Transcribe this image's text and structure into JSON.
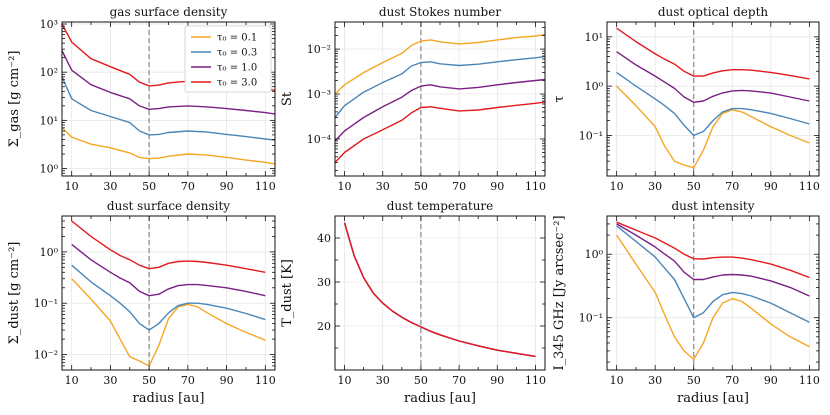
{
  "figure": {
    "xlabel": "radius [au]"
  },
  "legend": {
    "placement": "top-right",
    "panel": 0,
    "entries": [
      "τ₀ = 0.1",
      "τ₀ = 0.3",
      "τ₀ = 1.0",
      "τ₀ = 3.0"
    ]
  },
  "colors": {
    "t01": "#f5a623",
    "t03": "#4a86b8",
    "t10": "#7b1f86",
    "t30": "#e31a1c",
    "vline": "#888888"
  },
  "vline_x": 50,
  "chart_data": [
    {
      "type": "line",
      "title": "gas surface density",
      "ylabel": "Σ_gas [g cm⁻²]",
      "yscale": "log",
      "xlim": [
        5,
        115
      ],
      "ylim": [
        0.7,
        1100
      ],
      "xticks": [
        10,
        30,
        50,
        70,
        90,
        110
      ],
      "yticks": [
        1,
        10,
        100,
        1000
      ],
      "ytick_labels": [
        "10⁰",
        "10¹",
        "10²",
        "10³"
      ],
      "x": [
        5,
        10,
        20,
        30,
        40,
        45,
        50,
        55,
        60,
        70,
        80,
        90,
        100,
        110,
        115
      ],
      "series": [
        {
          "name": "τ₀ = 0.1",
          "color_key": "t01",
          "values": [
            7,
            4.5,
            3.2,
            2.7,
            2.1,
            1.7,
            1.6,
            1.65,
            1.8,
            2.0,
            1.9,
            1.7,
            1.5,
            1.35,
            1.25
          ]
        },
        {
          "name": "τ₀ = 0.3",
          "color_key": "t03",
          "values": [
            80,
            28,
            16,
            12,
            9,
            6,
            5,
            5.1,
            5.6,
            6,
            5.7,
            5.1,
            4.6,
            4.1,
            3.9
          ]
        },
        {
          "name": "τ₀ = 1.0",
          "color_key": "t10",
          "values": [
            280,
            110,
            55,
            38,
            28,
            20,
            17,
            17.5,
            19,
            20,
            19,
            17.5,
            16,
            14.5,
            13.5
          ]
        },
        {
          "name": "τ₀ = 3.0",
          "color_key": "t30",
          "values": [
            1000,
            420,
            190,
            130,
            90,
            62,
            52,
            54,
            60,
            65,
            60,
            55,
            50,
            45,
            42
          ]
        }
      ]
    },
    {
      "type": "line",
      "title": "dust Stokes number",
      "ylabel": "St",
      "yscale": "log",
      "xlim": [
        5,
        115
      ],
      "ylim": [
        1.5e-05,
        0.04
      ],
      "xticks": [
        10,
        30,
        50,
        70,
        90,
        110
      ],
      "yticks": [
        0.0001,
        0.001,
        0.01
      ],
      "ytick_labels": [
        "10⁻⁴",
        "10⁻³",
        "10⁻²"
      ],
      "x": [
        5,
        10,
        20,
        30,
        40,
        45,
        50,
        55,
        60,
        70,
        80,
        90,
        100,
        110,
        115
      ],
      "series": [
        {
          "name": "τ₀ = 0.1",
          "color_key": "t01",
          "values": [
            0.001,
            0.0016,
            0.003,
            0.005,
            0.008,
            0.012,
            0.015,
            0.016,
            0.0145,
            0.013,
            0.014,
            0.016,
            0.018,
            0.0195,
            0.021
          ]
        },
        {
          "name": "τ₀ = 0.3",
          "color_key": "t03",
          "values": [
            0.0003,
            0.00055,
            0.0011,
            0.0018,
            0.0028,
            0.0042,
            0.005,
            0.0052,
            0.0047,
            0.0043,
            0.0046,
            0.0052,
            0.0058,
            0.0064,
            0.0068
          ]
        },
        {
          "name": "τ₀ = 1.0",
          "color_key": "t10",
          "values": [
            9e-05,
            0.00015,
            0.0003,
            0.00052,
            0.00085,
            0.0012,
            0.0015,
            0.0016,
            0.00145,
            0.0013,
            0.0014,
            0.0016,
            0.0018,
            0.002,
            0.0021
          ]
        },
        {
          "name": "τ₀ = 3.0",
          "color_key": "t30",
          "values": [
            3e-05,
            5e-05,
            0.0001,
            0.00016,
            0.00026,
            0.00038,
            0.0005,
            0.00052,
            0.00048,
            0.00042,
            0.00044,
            0.0005,
            0.00056,
            0.00062,
            0.00066
          ]
        }
      ]
    },
    {
      "type": "line",
      "title": "dust optical depth",
      "ylabel": "τ",
      "yscale": "log",
      "xlim": [
        5,
        115
      ],
      "ylim": [
        0.015,
        20
      ],
      "xticks": [
        10,
        30,
        50,
        70,
        90,
        110
      ],
      "yticks": [
        0.1,
        1,
        10
      ],
      "ytick_labels": [
        "10⁻¹",
        "10⁰",
        "10¹"
      ],
      "x": [
        10,
        20,
        30,
        35,
        40,
        45,
        50,
        55,
        60,
        65,
        70,
        75,
        80,
        90,
        100,
        110
      ],
      "series": [
        {
          "name": "τ₀ = 0.1",
          "color_key": "t01",
          "values": [
            1.0,
            0.4,
            0.15,
            0.06,
            0.03,
            0.025,
            0.022,
            0.05,
            0.15,
            0.28,
            0.33,
            0.3,
            0.24,
            0.15,
            0.1,
            0.07
          ]
        },
        {
          "name": "τ₀ = 0.3",
          "color_key": "t03",
          "values": [
            1.9,
            1.0,
            0.55,
            0.4,
            0.28,
            0.16,
            0.1,
            0.12,
            0.2,
            0.3,
            0.35,
            0.35,
            0.33,
            0.28,
            0.22,
            0.17
          ]
        },
        {
          "name": "τ₀ = 1.0",
          "color_key": "t10",
          "values": [
            5.0,
            2.7,
            1.6,
            1.2,
            0.9,
            0.6,
            0.47,
            0.5,
            0.62,
            0.73,
            0.8,
            0.82,
            0.8,
            0.72,
            0.6,
            0.5
          ]
        },
        {
          "name": "τ₀ = 3.0",
          "color_key": "t30",
          "values": [
            15,
            8,
            4.5,
            3.5,
            2.8,
            2.0,
            1.6,
            1.6,
            1.85,
            2.05,
            2.15,
            2.15,
            2.1,
            1.9,
            1.65,
            1.4
          ]
        }
      ]
    },
    {
      "type": "line",
      "title": "dust surface density",
      "ylabel": "Σ_dust [g cm⁻²]",
      "yscale": "log",
      "xlim": [
        5,
        115
      ],
      "ylim": [
        0.005,
        5
      ],
      "xticks": [
        10,
        30,
        50,
        70,
        90,
        110
      ],
      "yticks": [
        0.01,
        0.1,
        1
      ],
      "ytick_labels": [
        "10⁻²",
        "10⁻¹",
        "10⁰"
      ],
      "x": [
        10,
        20,
        30,
        35,
        40,
        45,
        50,
        55,
        60,
        65,
        70,
        75,
        80,
        90,
        100,
        110
      ],
      "series": [
        {
          "name": "τ₀ = 0.1",
          "color_key": "t01",
          "values": [
            0.3,
            0.12,
            0.045,
            0.02,
            0.009,
            0.0075,
            0.006,
            0.015,
            0.05,
            0.085,
            0.095,
            0.085,
            0.065,
            0.04,
            0.027,
            0.019
          ]
        },
        {
          "name": "τ₀ = 0.3",
          "color_key": "t03",
          "values": [
            0.55,
            0.26,
            0.14,
            0.1,
            0.068,
            0.04,
            0.03,
            0.04,
            0.065,
            0.09,
            0.1,
            0.1,
            0.095,
            0.08,
            0.063,
            0.048
          ]
        },
        {
          "name": "τ₀ = 1.0",
          "color_key": "t10",
          "values": [
            1.4,
            0.7,
            0.4,
            0.31,
            0.25,
            0.17,
            0.14,
            0.15,
            0.19,
            0.22,
            0.23,
            0.23,
            0.22,
            0.2,
            0.17,
            0.14
          ]
        },
        {
          "name": "τ₀ = 3.0",
          "color_key": "t30",
          "values": [
            4.0,
            2.0,
            1.1,
            0.85,
            0.7,
            0.55,
            0.47,
            0.5,
            0.6,
            0.65,
            0.66,
            0.65,
            0.62,
            0.55,
            0.47,
            0.4
          ]
        }
      ]
    },
    {
      "type": "line",
      "title": "dust temperature",
      "ylabel": "T_dust [K]",
      "yscale": "linear",
      "xlim": [
        5,
        115
      ],
      "ylim": [
        10,
        45
      ],
      "xticks": [
        10,
        30,
        50,
        70,
        90,
        110
      ],
      "yticks": [
        20,
        30,
        40
      ],
      "ytick_labels": [
        "20",
        "30",
        "40"
      ],
      "x": [
        10,
        15,
        20,
        25,
        30,
        35,
        40,
        45,
        50,
        55,
        60,
        70,
        80,
        90,
        100,
        110
      ],
      "series": [
        {
          "name": "τ₀ = 0.3",
          "color_key": "t03",
          "values": [
            43.5,
            36,
            31,
            27.5,
            25.2,
            23.4,
            22,
            20.8,
            19.8,
            18.8,
            18,
            16.6,
            15.5,
            14.5,
            13.8,
            13.1
          ]
        },
        {
          "name": "τ₀ = 1.0",
          "color_key": "t10",
          "values": [
            43.5,
            36,
            31,
            27.5,
            25.2,
            23.4,
            22,
            20.8,
            19.8,
            18.8,
            18,
            16.6,
            15.5,
            14.5,
            13.8,
            13.1
          ]
        },
        {
          "name": "τ₀ = 3.0",
          "color_key": "t30",
          "values": [
            43.5,
            36,
            31,
            27.5,
            25.2,
            23.4,
            22,
            20.8,
            19.8,
            18.8,
            18,
            16.6,
            15.5,
            14.5,
            13.8,
            13.1
          ]
        }
      ]
    },
    {
      "type": "line",
      "title": "dust intensity",
      "ylabel": "I_345 GHz [Jy arcsec⁻²]",
      "yscale": "log",
      "xlim": [
        5,
        115
      ],
      "ylim": [
        0.015,
        4
      ],
      "xticks": [
        10,
        30,
        50,
        70,
        90,
        110
      ],
      "yticks": [
        0.1,
        1
      ],
      "ytick_labels": [
        "10⁻¹",
        "10⁰"
      ],
      "x": [
        10,
        20,
        30,
        35,
        40,
        45,
        50,
        55,
        60,
        65,
        70,
        75,
        80,
        90,
        100,
        110
      ],
      "series": [
        {
          "name": "τ₀ = 0.1",
          "color_key": "t01",
          "values": [
            2.0,
            0.7,
            0.25,
            0.11,
            0.05,
            0.03,
            0.022,
            0.04,
            0.1,
            0.17,
            0.2,
            0.18,
            0.14,
            0.08,
            0.05,
            0.035
          ]
        },
        {
          "name": "τ₀ = 0.3",
          "color_key": "t03",
          "values": [
            2.8,
            1.6,
            0.9,
            0.6,
            0.4,
            0.2,
            0.1,
            0.12,
            0.18,
            0.23,
            0.25,
            0.24,
            0.22,
            0.17,
            0.12,
            0.085
          ]
        },
        {
          "name": "τ₀ = 1.0",
          "color_key": "t10",
          "values": [
            3.0,
            2.0,
            1.3,
            1.0,
            0.78,
            0.52,
            0.4,
            0.4,
            0.44,
            0.47,
            0.48,
            0.47,
            0.45,
            0.38,
            0.3,
            0.22
          ]
        },
        {
          "name": "τ₀ = 3.0",
          "color_key": "t30",
          "values": [
            3.2,
            2.4,
            1.8,
            1.5,
            1.25,
            1.0,
            0.85,
            0.84,
            0.88,
            0.9,
            0.9,
            0.87,
            0.82,
            0.7,
            0.56,
            0.43
          ]
        }
      ]
    }
  ]
}
